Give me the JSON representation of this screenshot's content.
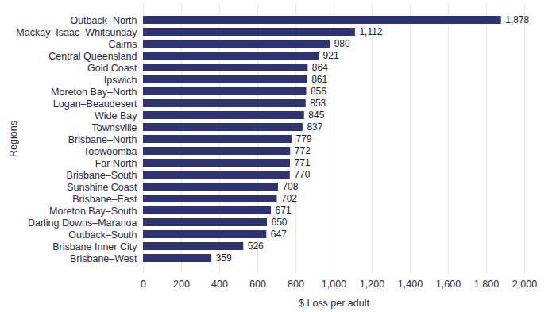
{
  "chart_data": {
    "type": "bar",
    "orientation": "horizontal",
    "x_label": "$ Loss per adult",
    "y_label": "Regions",
    "categories": [
      "Outback–North",
      "Mackay–Isaac–Whitsunday",
      "Cairns",
      "Central Queensland",
      "Gold Coast",
      "Ipswich",
      "Moreton Bay–North",
      "Logan–Beaudesert",
      "Wide Bay",
      "Townsville",
      "Brisbane–North",
      "Toowoomba",
      "Far North",
      "Brisbane–South",
      "Sunshine Coast",
      "Brisbane–East",
      "Moreton Bay–South",
      "Darling Downs–Maranoa",
      "Outback–South",
      "Brisbane Inner City",
      "Brisbane–West"
    ],
    "values": [
      1878,
      1112,
      980,
      921,
      864,
      861,
      856,
      853,
      845,
      837,
      779,
      772,
      771,
      770,
      708,
      702,
      671,
      650,
      647,
      526,
      359
    ],
    "value_labels": [
      "1,878",
      "1,112",
      "980",
      "921",
      "864",
      "861",
      "856",
      "853",
      "845",
      "837",
      "779",
      "772",
      "771",
      "770",
      "708",
      "702",
      "671",
      "650",
      "647",
      "526",
      "359"
    ],
    "color": "#2f3470",
    "xlim": [
      0,
      2000
    ],
    "xticks": [
      0,
      200,
      400,
      600,
      800,
      {
        "value": 1000,
        "label": "1,000"
      },
      {
        "value": 1200,
        "label": "1,200"
      },
      {
        "value": 1400,
        "label": "1,400"
      },
      {
        "value": 1600,
        "label": "1,600"
      },
      {
        "value": 1800,
        "label": "1,800"
      },
      {
        "value": 2000,
        "label": "2,000"
      }
    ],
    "grid": true,
    "data_labels": true
  }
}
